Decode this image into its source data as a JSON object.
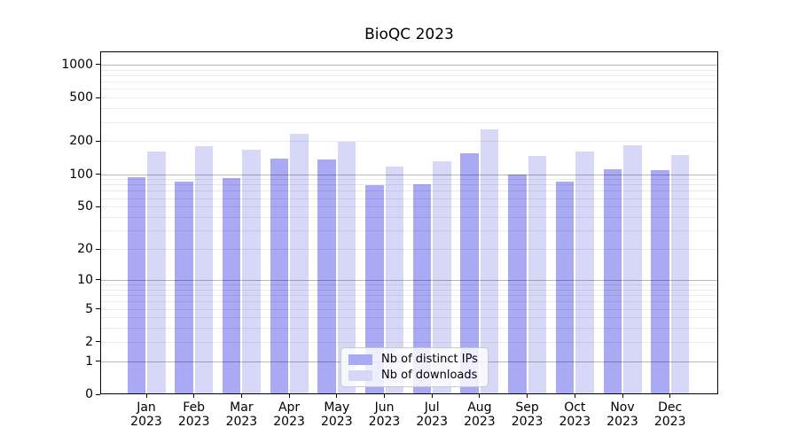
{
  "chart_data": {
    "type": "bar",
    "title": "BioQC 2023",
    "categories": [
      "Jan 2023",
      "Feb 2023",
      "Mar 2023",
      "Apr 2023",
      "May 2023",
      "Jun 2023",
      "Jul 2023",
      "Aug 2023",
      "Sep 2023",
      "Oct 2023",
      "Nov 2023",
      "Dec 2023"
    ],
    "series": [
      {
        "name": "Nb of distinct IPs",
        "color": "#a9a9f4",
        "values": [
          93,
          85,
          92,
          140,
          135,
          79,
          81,
          156,
          100,
          85,
          110,
          109
        ]
      },
      {
        "name": "Nb of downloads",
        "color": "#d7d7f7",
        "values": [
          161,
          181,
          168,
          234,
          197,
          118,
          132,
          257,
          147,
          161,
          185,
          149
        ]
      }
    ],
    "xlabel": "",
    "ylabel": "",
    "yscale": "log1p",
    "ylim": [
      0,
      1320
    ],
    "yticks": [
      0,
      1,
      2,
      5,
      10,
      20,
      50,
      100,
      200,
      500,
      1000
    ],
    "major_gridlines": [
      1,
      10,
      100,
      1000
    ],
    "minor_gridlines": [
      2,
      3,
      4,
      5,
      6,
      7,
      8,
      9,
      20,
      30,
      40,
      50,
      60,
      70,
      80,
      90,
      200,
      300,
      400,
      500,
      600,
      700,
      800,
      900
    ],
    "grid": true,
    "legend_position": "lower center",
    "colors": {
      "axis": "#000000",
      "major_grid": "rgba(0,0,0,0.28)",
      "minor_grid": "rgba(0,0,0,0.08)",
      "legend_background": "rgba(255,255,255,0.8)",
      "legend_border": "#c9c9c9"
    }
  }
}
